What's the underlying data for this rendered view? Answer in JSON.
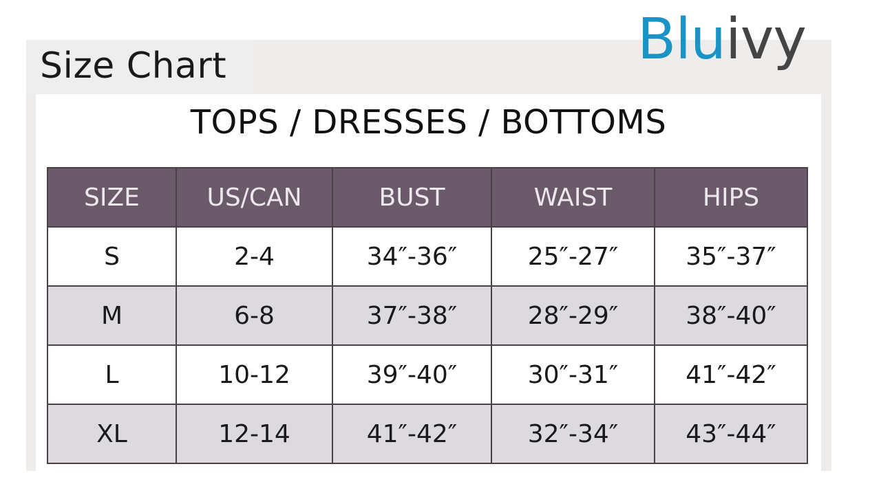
{
  "title": "Size Chart",
  "logo": {
    "part1": "Blu",
    "part2": "ivy",
    "colors": {
      "part1": "#1a94c6",
      "part2": "#444444"
    }
  },
  "heading": "TOPS / DRESSES / BOTTOMS",
  "table": {
    "header_color": "#6b5a69",
    "columns": [
      "SIZE",
      "US/CAN",
      "BUST",
      "WAIST",
      "HIPS"
    ],
    "rows": [
      [
        "S",
        "2-4",
        "34″-36″",
        "25″-27″",
        "35″-37″"
      ],
      [
        "M",
        "6-8",
        "37″-38″",
        "28″-29″",
        "38″-40″"
      ],
      [
        "L",
        "10-12",
        "39″-40″",
        "30″-31″",
        "41″-42″"
      ],
      [
        "XL",
        "12-14",
        "41″-42″",
        "32″-34″",
        "43″-44″"
      ]
    ]
  }
}
